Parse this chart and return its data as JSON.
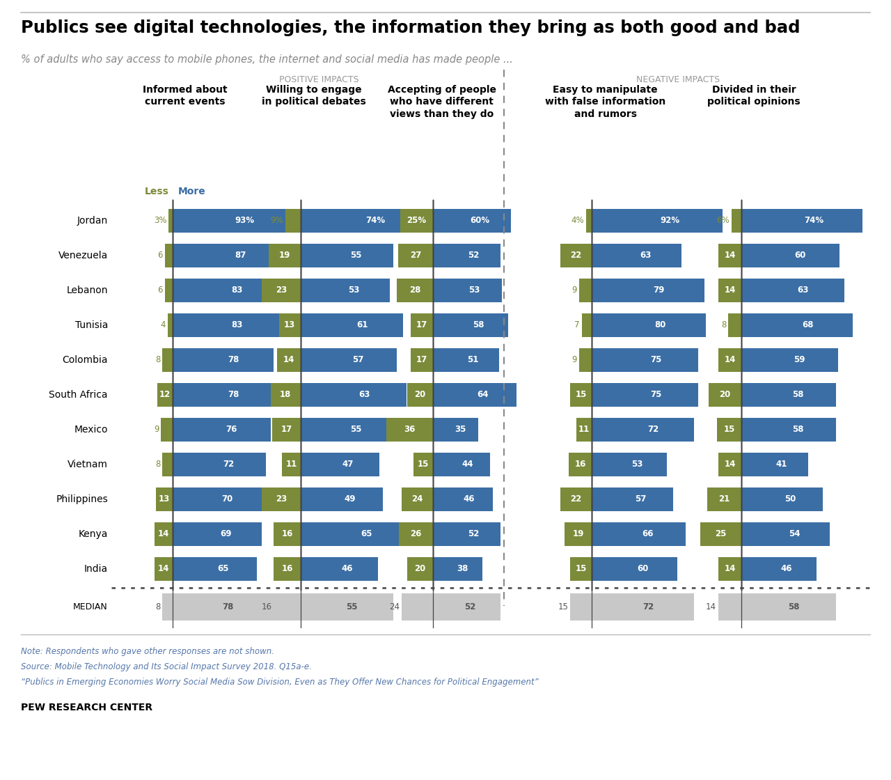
{
  "title": "Publics see digital technologies, the information they bring as both good and bad",
  "subtitle": "% of adults who say access to mobile phones, the internet and social media has made people ...",
  "countries": [
    "Jordan",
    "Venezuela",
    "Lebanon",
    "Tunisia",
    "Colombia",
    "South Africa",
    "Mexico",
    "Vietnam",
    "Philippines",
    "Kenya",
    "India"
  ],
  "median_label": "MEDIAN",
  "columns": [
    {
      "header": "Informed about\ncurrent events",
      "section": "positive",
      "less": [
        3,
        6,
        6,
        4,
        8,
        12,
        9,
        8,
        13,
        14,
        14
      ],
      "more": [
        93,
        87,
        83,
        83,
        78,
        78,
        76,
        72,
        70,
        69,
        65
      ],
      "median_less": 8,
      "median_more": 78,
      "max_val": 100
    },
    {
      "header": "Willing to engage\nin political debates",
      "section": "positive",
      "less": [
        9,
        19,
        23,
        13,
        14,
        18,
        17,
        11,
        23,
        16,
        16
      ],
      "more": [
        74,
        55,
        53,
        61,
        57,
        63,
        55,
        47,
        49,
        65,
        46
      ],
      "median_less": 16,
      "median_more": 55,
      "max_val": 100
    },
    {
      "header": "Accepting of people\nwho have different\nviews than they do",
      "section": "positive",
      "less": [
        25,
        27,
        28,
        17,
        17,
        20,
        36,
        15,
        24,
        26,
        20
      ],
      "more": [
        60,
        52,
        53,
        58,
        51,
        64,
        35,
        44,
        46,
        52,
        38
      ],
      "median_less": 24,
      "median_more": 52,
      "max_val": 100
    },
    {
      "header": "Easy to manipulate\nwith false information\nand rumors",
      "section": "negative",
      "less": [
        4,
        22,
        9,
        7,
        9,
        15,
        11,
        16,
        22,
        19,
        15
      ],
      "more": [
        92,
        63,
        79,
        80,
        75,
        75,
        72,
        53,
        57,
        66,
        60
      ],
      "median_less": 15,
      "median_more": 72,
      "max_val": 100
    },
    {
      "header": "Divided in their\npolitical opinions",
      "section": "negative",
      "less": [
        6,
        14,
        14,
        8,
        14,
        20,
        15,
        14,
        21,
        25,
        14
      ],
      "more": [
        74,
        60,
        63,
        68,
        59,
        58,
        58,
        41,
        50,
        54,
        46
      ],
      "median_less": 14,
      "median_more": 58,
      "max_val": 100
    }
  ],
  "colors": {
    "blue": "#3B6EA5",
    "olive": "#7B8B3A",
    "gray": "#C8C8C8",
    "title_color": "#000000",
    "subtitle_color": "#888888",
    "section_header_color": "#999999",
    "note_color": "#5577AA",
    "pew_color": "#000000",
    "divider_line": "#888888",
    "center_line": "#555555"
  },
  "note_lines": [
    "Note: Respondents who gave other responses are not shown.",
    "Source: Mobile Technology and Its Social Impact Survey 2018. Q15a-e.",
    "“Publics in Emerging Economies Worry Social Media Sow Division, Even as They Offer New Chances for Political Engagement”"
  ],
  "pew_label": "PEW RESEARCH CENTER",
  "positive_label": "POSITIVE IMPACTS",
  "negative_label": "NEGATIVE IMPACTS",
  "less_label": "Less",
  "more_label": "More"
}
